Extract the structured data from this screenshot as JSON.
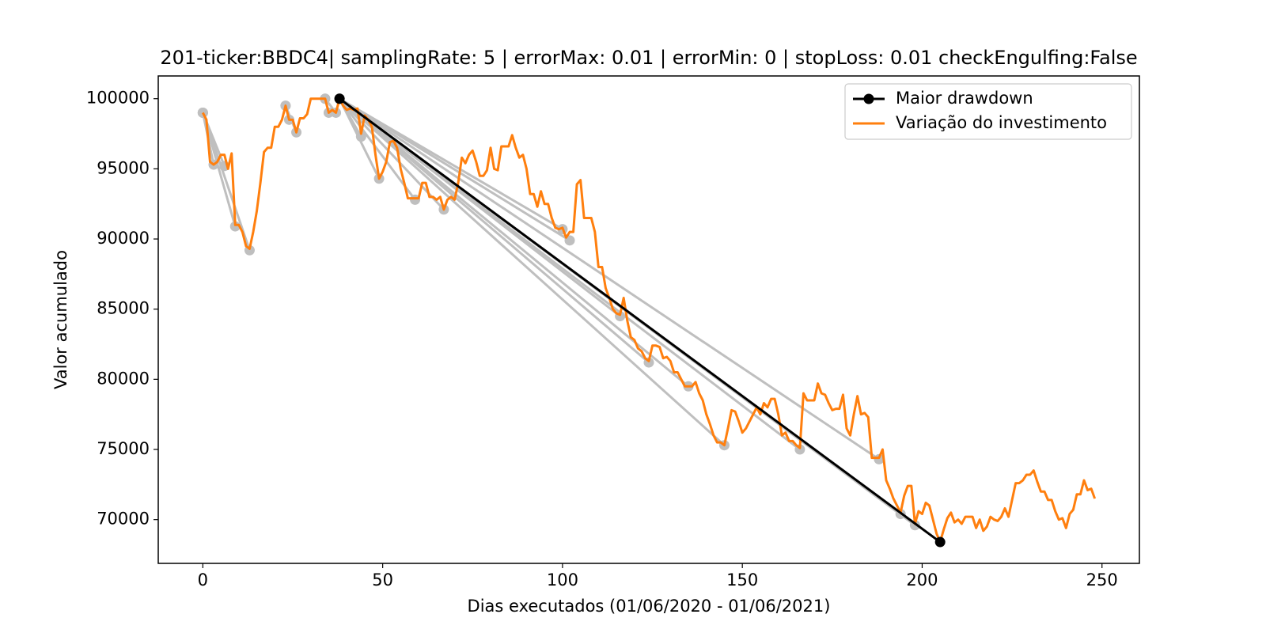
{
  "chart_data": {
    "type": "line",
    "title": "201-ticker:BBDC4| samplingRate: 5 | errorMax: 0.01 | errorMin: 0 | stopLoss: 0.01 checkEngulfing:False",
    "x_label": "Dias executados (01/06/2020 - 01/06/2021)",
    "y_label": "Valor acumulado",
    "xlim": [
      -12.4,
      260.4
    ],
    "ylim": [
      66880,
      101620
    ],
    "xticks": [
      0,
      50,
      100,
      150,
      200,
      250
    ],
    "yticks": [
      70000,
      75000,
      80000,
      85000,
      90000,
      95000,
      100000
    ],
    "legend": "upper right",
    "drawdown_color": "#bfbfbf",
    "drawdowns": [
      {
        "x": [
          0,
          3
        ],
        "values": [
          99000,
          95300
        ]
      },
      {
        "x": [
          0,
          6
        ],
        "values": [
          99000,
          95200
        ]
      },
      {
        "x": [
          0,
          9
        ],
        "values": [
          99000,
          90900
        ]
      },
      {
        "x": [
          0,
          13
        ],
        "values": [
          99000,
          89200
        ]
      },
      {
        "x": [
          23,
          24
        ],
        "values": [
          99500,
          98500
        ]
      },
      {
        "x": [
          23,
          26
        ],
        "values": [
          99500,
          97600
        ]
      },
      {
        "x": [
          34,
          35
        ],
        "values": [
          100000,
          99000
        ]
      },
      {
        "x": [
          34,
          37
        ],
        "values": [
          100000,
          99000
        ]
      },
      {
        "x": [
          38,
          44
        ],
        "values": [
          100000,
          97300
        ]
      },
      {
        "x": [
          38,
          49
        ],
        "values": [
          100000,
          94300
        ]
      },
      {
        "x": [
          38,
          59
        ],
        "values": [
          100000,
          92800
        ]
      },
      {
        "x": [
          38,
          67
        ],
        "values": [
          100000,
          92100
        ]
      },
      {
        "x": [
          38,
          100
        ],
        "values": [
          100000,
          90700
        ]
      },
      {
        "x": [
          38,
          102
        ],
        "values": [
          100000,
          89900
        ]
      },
      {
        "x": [
          38,
          116
        ],
        "values": [
          100000,
          84500
        ]
      },
      {
        "x": [
          38,
          124
        ],
        "values": [
          100000,
          81200
        ]
      },
      {
        "x": [
          38,
          135
        ],
        "values": [
          100000,
          79500
        ]
      },
      {
        "x": [
          38,
          145
        ],
        "values": [
          100000,
          75300
        ]
      },
      {
        "x": [
          38,
          166
        ],
        "values": [
          100000,
          75000
        ]
      },
      {
        "x": [
          38,
          188
        ],
        "values": [
          100000,
          74300
        ]
      },
      {
        "x": [
          38,
          194
        ],
        "values": [
          100000,
          70400
        ]
      },
      {
        "x": [
          38,
          198
        ],
        "values": [
          100000,
          69600
        ]
      }
    ],
    "series": [
      {
        "name": "Maior drawdown",
        "color": "#000000",
        "marker": true,
        "x": [
          38,
          205
        ],
        "values": [
          100000,
          68400
        ]
      },
      {
        "name": "Variação do investimento",
        "color": "#ff7f0e",
        "marker": false,
        "x": [
          0,
          1,
          2,
          3,
          4,
          5,
          6,
          7,
          8,
          9,
          10,
          11,
          12,
          13,
          14,
          15,
          16,
          17,
          18,
          19,
          20,
          21,
          22,
          23,
          24,
          25,
          26,
          27,
          28,
          29,
          30,
          31,
          32,
          33,
          34,
          35,
          36,
          37,
          38,
          39,
          40,
          41,
          42,
          43,
          44,
          45,
          46,
          47,
          48,
          49,
          50,
          51,
          52,
          53,
          54,
          55,
          56,
          57,
          58,
          59,
          60,
          61,
          62,
          63,
          64,
          65,
          66,
          67,
          68,
          69,
          70,
          71,
          72,
          73,
          74,
          75,
          76,
          77,
          78,
          79,
          80,
          81,
          82,
          83,
          84,
          85,
          86,
          87,
          88,
          89,
          90,
          91,
          92,
          93,
          94,
          95,
          96,
          97,
          98,
          99,
          100,
          101,
          102,
          103,
          104,
          105,
          106,
          107,
          108,
          109,
          110,
          111,
          112,
          113,
          114,
          115,
          116,
          117,
          118,
          119,
          120,
          121,
          122,
          123,
          124,
          125,
          126,
          127,
          128,
          129,
          130,
          131,
          132,
          133,
          134,
          135,
          136,
          137,
          138,
          139,
          140,
          141,
          142,
          143,
          144,
          145,
          146,
          147,
          148,
          149,
          150,
          151,
          152,
          153,
          154,
          155,
          156,
          157,
          158,
          159,
          160,
          161,
          162,
          163,
          164,
          165,
          166,
          167,
          168,
          169,
          170,
          171,
          172,
          173,
          174,
          175,
          176,
          177,
          178,
          179,
          180,
          181,
          182,
          183,
          184,
          185,
          186,
          187,
          188,
          189,
          190,
          191,
          192,
          193,
          194,
          195,
          196,
          197,
          198,
          199,
          200,
          201,
          202,
          203,
          204,
          205,
          206,
          207,
          208,
          209,
          210,
          211,
          212,
          213,
          214,
          215,
          216,
          217,
          218,
          219,
          220,
          221,
          222,
          223,
          224,
          225,
          226,
          227,
          228,
          229,
          230,
          231,
          232,
          233,
          234,
          235,
          236,
          237,
          238,
          239,
          240,
          241,
          242,
          243,
          244,
          245,
          246,
          247,
          248
        ],
        "values": [
          99000,
          98500,
          95500,
          95300,
          95500,
          96000,
          96000,
          95000,
          96100,
          91000,
          91000,
          90500,
          89500,
          89300,
          90500,
          92000,
          94000,
          96200,
          96500,
          96500,
          98000,
          98000,
          98500,
          99500,
          98500,
          98500,
          97600,
          98600,
          98600,
          98900,
          100000,
          100000,
          100000,
          100000,
          100000,
          99000,
          99200,
          99000,
          100000,
          99500,
          99200,
          99300,
          99200,
          99300,
          97500,
          98800,
          98500,
          98000,
          96000,
          94300,
          94800,
          95500,
          96900,
          97000,
          96500,
          95000,
          94000,
          92900,
          92900,
          92900,
          92900,
          94000,
          94000,
          93000,
          93000,
          92800,
          93000,
          92100,
          92800,
          93000,
          92800,
          94000,
          95800,
          95400,
          96000,
          96300,
          95500,
          94500,
          94500,
          94900,
          96500,
          95000,
          94900,
          96600,
          96600,
          96600,
          97400,
          96500,
          95800,
          96000,
          95000,
          93200,
          93200,
          92300,
          93400,
          92500,
          92500,
          91500,
          90800,
          90700,
          90800,
          90100,
          90500,
          90500,
          93900,
          94200,
          91500,
          91500,
          91500,
          90500,
          88000,
          88000,
          86500,
          85800,
          85000,
          84700,
          84600,
          85800,
          84200,
          83000,
          82800,
          82200,
          82000,
          81500,
          81300,
          82400,
          82400,
          82300,
          81500,
          81600,
          81300,
          80500,
          80500,
          80000,
          79500,
          79500,
          79500,
          79800,
          79000,
          78500,
          77500,
          76800,
          76000,
          75500,
          75500,
          75300,
          76500,
          77800,
          77700,
          77000,
          76200,
          76500,
          77000,
          77500,
          78000,
          77500,
          78300,
          78000,
          78600,
          78600,
          77500,
          76000,
          76200,
          75600,
          75600,
          75300,
          75100,
          79000,
          78500,
          78500,
          78500,
          79700,
          79000,
          78900,
          78300,
          77800,
          77900,
          77900,
          78900,
          76500,
          76000,
          77500,
          78800,
          77500,
          77600,
          77300,
          74400,
          74400,
          74400,
          75000,
          72800,
          72200,
          71500,
          71000,
          70500,
          71700,
          72400,
          72400,
          69700,
          70600,
          70400,
          71200,
          71000,
          70000,
          69000,
          68400,
          69300,
          70100,
          70500,
          69800,
          70000,
          69700,
          70200,
          70200,
          70200,
          69400,
          70000,
          69200,
          69500,
          70200,
          70000,
          69900,
          70200,
          70800,
          70200,
          71400,
          72600,
          72600,
          72800,
          73200,
          73200,
          73500,
          72700,
          72000,
          72000,
          71400,
          71400,
          70600,
          70000,
          70100,
          69400,
          70400,
          70700,
          71800,
          71800,
          72800,
          72100,
          72200,
          71500
        ]
      }
    ]
  }
}
